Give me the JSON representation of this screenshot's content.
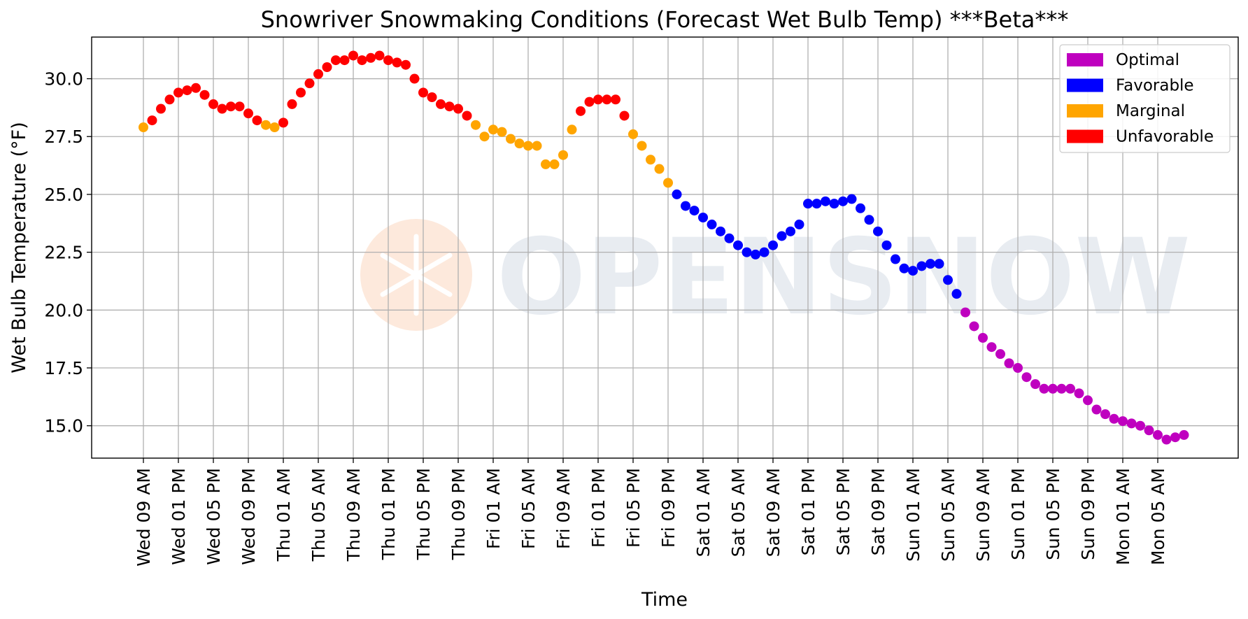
{
  "chart_data": {
    "type": "scatter",
    "title": "Snowriver Snowmaking Conditions (Forecast Wet Bulb Temp) ***Beta***",
    "xlabel": "Time",
    "ylabel": "Wet Bulb Temperature (°F)",
    "ylim": [
      13.6,
      31.8
    ],
    "yticks": [
      15.0,
      17.5,
      20.0,
      22.5,
      25.0,
      27.5,
      30.0
    ],
    "ytick_labels": [
      "15.0",
      "17.5",
      "20.0",
      "22.5",
      "25.0",
      "27.5",
      "30.0"
    ],
    "x_tick_labels": [
      "Wed 09 AM",
      "Wed 01 PM",
      "Wed 05 PM",
      "Wed 09 PM",
      "Thu 01 AM",
      "Thu 05 AM",
      "Thu 09 AM",
      "Thu 01 PM",
      "Thu 05 PM",
      "Thu 09 PM",
      "Fri 01 AM",
      "Fri 05 AM",
      "Fri 09 AM",
      "Fri 01 PM",
      "Fri 05 PM",
      "Fri 09 PM",
      "Sat 01 AM",
      "Sat 05 AM",
      "Sat 09 AM",
      "Sat 01 PM",
      "Sat 05 PM",
      "Sat 09 PM",
      "Sun 01 AM",
      "Sun 05 AM",
      "Sun 09 AM",
      "Sun 01 PM",
      "Sun 05 PM",
      "Sun 09 PM",
      "Mon 01 AM",
      "Mon 05 AM"
    ],
    "x_tick_interval_hours": 4,
    "x_start": "Wed 09 AM",
    "grid": true,
    "legend_position": "top-right",
    "categories": [
      {
        "name": "Optimal",
        "color": "#bf00bf"
      },
      {
        "name": "Favorable",
        "color": "#0000ff"
      },
      {
        "name": "Marginal",
        "color": "#ffa500"
      },
      {
        "name": "Unfavorable",
        "color": "#ff0000"
      }
    ],
    "values": [
      27.9,
      28.2,
      28.7,
      29.1,
      29.4,
      29.5,
      29.6,
      29.3,
      28.9,
      28.7,
      28.8,
      28.8,
      28.5,
      28.2,
      28.0,
      27.9,
      28.1,
      28.9,
      29.4,
      29.8,
      30.2,
      30.5,
      30.8,
      30.8,
      31.0,
      30.8,
      30.9,
      31.0,
      30.8,
      30.7,
      30.6,
      30.0,
      29.4,
      29.2,
      28.9,
      28.8,
      28.7,
      28.4,
      28.0,
      27.5,
      27.8,
      27.7,
      27.4,
      27.2,
      27.1,
      27.1,
      26.3,
      26.3,
      26.7,
      27.8,
      28.6,
      29.0,
      29.1,
      29.1,
      29.1,
      28.4,
      27.6,
      27.1,
      26.5,
      26.1,
      25.5,
      25.0,
      24.5,
      24.3,
      24.0,
      23.7,
      23.4,
      23.1,
      22.8,
      22.5,
      22.4,
      22.5,
      22.8,
      23.2,
      23.4,
      23.7,
      24.6,
      24.6,
      24.7,
      24.6,
      24.7,
      24.8,
      24.4,
      23.9,
      23.4,
      22.8,
      22.2,
      21.8,
      21.7,
      21.9,
      22.0,
      22.0,
      21.3,
      20.7,
      19.9,
      19.3,
      18.8,
      18.4,
      18.1,
      17.7,
      17.5,
      17.1,
      16.8,
      16.6,
      16.6,
      16.6,
      16.6,
      16.4,
      16.1,
      15.7,
      15.5,
      15.3,
      15.2,
      15.1,
      15.0,
      14.8,
      14.6,
      14.4,
      14.5,
      14.6
    ],
    "point_categories": [
      "Marginal",
      "Unfavorable",
      "Unfavorable",
      "Unfavorable",
      "Unfavorable",
      "Unfavorable",
      "Unfavorable",
      "Unfavorable",
      "Unfavorable",
      "Unfavorable",
      "Unfavorable",
      "Unfavorable",
      "Unfavorable",
      "Unfavorable",
      "Marginal",
      "Marginal",
      "Unfavorable",
      "Unfavorable",
      "Unfavorable",
      "Unfavorable",
      "Unfavorable",
      "Unfavorable",
      "Unfavorable",
      "Unfavorable",
      "Unfavorable",
      "Unfavorable",
      "Unfavorable",
      "Unfavorable",
      "Unfavorable",
      "Unfavorable",
      "Unfavorable",
      "Unfavorable",
      "Unfavorable",
      "Unfavorable",
      "Unfavorable",
      "Unfavorable",
      "Unfavorable",
      "Unfavorable",
      "Marginal",
      "Marginal",
      "Marginal",
      "Marginal",
      "Marginal",
      "Marginal",
      "Marginal",
      "Marginal",
      "Marginal",
      "Marginal",
      "Marginal",
      "Marginal",
      "Unfavorable",
      "Unfavorable",
      "Unfavorable",
      "Unfavorable",
      "Unfavorable",
      "Unfavorable",
      "Marginal",
      "Marginal",
      "Marginal",
      "Marginal",
      "Marginal",
      "Favorable",
      "Favorable",
      "Favorable",
      "Favorable",
      "Favorable",
      "Favorable",
      "Favorable",
      "Favorable",
      "Favorable",
      "Favorable",
      "Favorable",
      "Favorable",
      "Favorable",
      "Favorable",
      "Favorable",
      "Favorable",
      "Favorable",
      "Favorable",
      "Favorable",
      "Favorable",
      "Favorable",
      "Favorable",
      "Favorable",
      "Favorable",
      "Favorable",
      "Favorable",
      "Favorable",
      "Favorable",
      "Favorable",
      "Favorable",
      "Favorable",
      "Favorable",
      "Favorable",
      "Optimal",
      "Optimal",
      "Optimal",
      "Optimal",
      "Optimal",
      "Optimal",
      "Optimal",
      "Optimal",
      "Optimal",
      "Optimal",
      "Optimal",
      "Optimal",
      "Optimal",
      "Optimal",
      "Optimal",
      "Optimal",
      "Optimal",
      "Optimal",
      "Optimal",
      "Optimal",
      "Optimal",
      "Optimal",
      "Optimal",
      "Optimal",
      "Optimal",
      "Optimal"
    ]
  },
  "watermark": {
    "text": "OPENSNOW",
    "color": "#e4e9ef",
    "logo_color": "#fde9dc"
  }
}
